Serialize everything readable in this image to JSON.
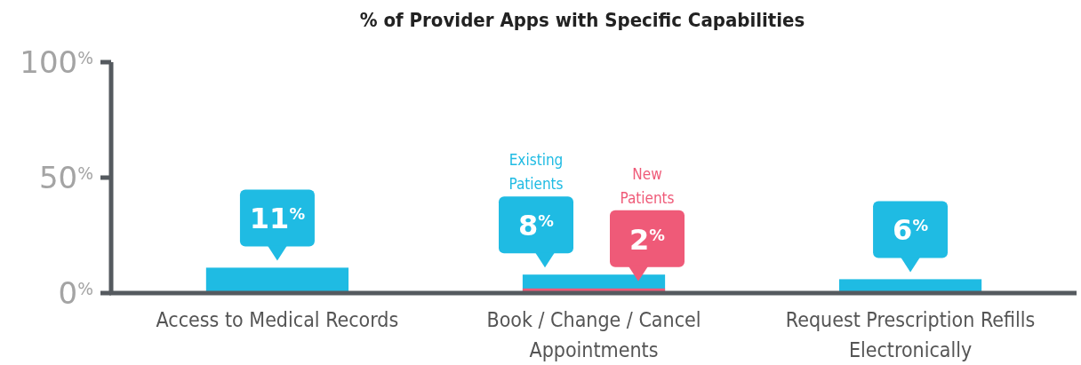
{
  "chart_data": {
    "type": "bar",
    "title": "% of Provider Apps with Specific Capabilities",
    "categories": [
      "Access to Medical Records",
      "Book / Change / Cancel Appointments",
      "Request Prescription Refills Electronically"
    ],
    "series": [
      {
        "name": "Existing Patients",
        "color": "#1fbbe3",
        "values": [
          11,
          8,
          6
        ],
        "value_labels": [
          "11$^{%}$",
          "8$^{%}$",
          "6$^{%}$"
        ]
      },
      {
        "name": "New Patients",
        "color": "#ef5a78",
        "values": [
          null,
          2,
          null
        ],
        "value_labels": [
          null,
          "2$^{%}$",
          null
        ]
      }
    ],
    "ylim": [
      0,
      100
    ],
    "yticks": [
      {
        "value": 0,
        "label": "0$^{%}$"
      },
      {
        "value": 50,
        "label": "50$^{%}$"
      },
      {
        "value": 100,
        "label": "100$^{%}$"
      }
    ],
    "grid": false,
    "legend": false
  }
}
